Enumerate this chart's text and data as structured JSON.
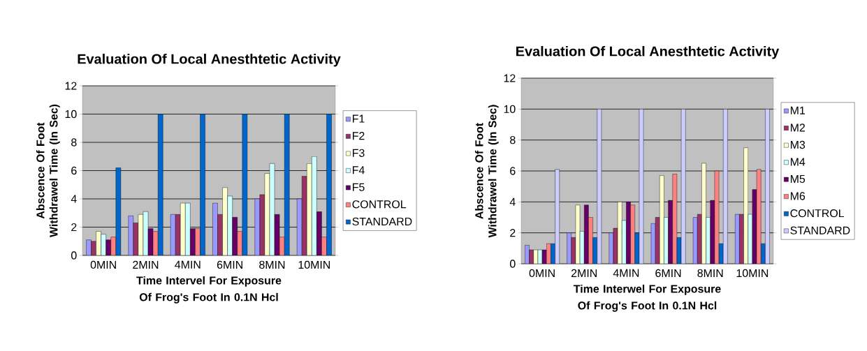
{
  "chart_data": [
    {
      "type": "bar",
      "title": "Evaluation Of Local Anesthtetic Activity",
      "xlabel": "Time Intervel For Exposure Of Frog's Foot In 0.1N Hcl",
      "ylabel": "Abscence Of Foot Withdrawel Time (In Sec)",
      "categories": [
        "0MIN",
        "2MIN",
        "4MIN",
        "6MIN",
        "8MIN",
        "10MIN"
      ],
      "series": [
        {
          "name": "F1",
          "color": "#9999ff",
          "values": [
            1.1,
            2.8,
            2.9,
            3.7,
            4.0,
            4.0
          ]
        },
        {
          "name": "F2",
          "color": "#993366",
          "values": [
            1.0,
            2.3,
            2.9,
            2.9,
            4.3,
            5.6
          ]
        },
        {
          "name": "F3",
          "color": "#ffffcc",
          "values": [
            1.7,
            2.9,
            3.7,
            4.8,
            5.8,
            6.5
          ]
        },
        {
          "name": "F4",
          "color": "#ccffff",
          "values": [
            1.5,
            3.1,
            3.7,
            4.2,
            6.5,
            7.0
          ]
        },
        {
          "name": "F5",
          "color": "#660066",
          "values": [
            1.1,
            1.9,
            1.9,
            2.7,
            2.9,
            3.1
          ]
        },
        {
          "name": "CONTROL",
          "color": "#ff8080",
          "values": [
            1.3,
            1.7,
            1.9,
            1.7,
            1.3,
            1.3
          ]
        },
        {
          "name": "STANDARD",
          "color": "#0066cc",
          "values": [
            6.2,
            10,
            10,
            10,
            10,
            10
          ]
        }
      ],
      "ylim": [
        0,
        12
      ],
      "yticks": [
        0,
        2,
        4,
        6,
        8,
        10,
        12
      ],
      "grid": "y",
      "legend": "right"
    },
    {
      "type": "bar",
      "title": "Evaluation Of Local Anesthtetic Activity",
      "xlabel": "Time Interwel For Exposure Of Frog's Foot In 0.1N Hcl",
      "ylabel": "Abscence Of Foot Withdrawel Time (In Sec)",
      "categories": [
        "0MIN",
        "2MIN",
        "4MIN",
        "6MIN",
        "8MIN",
        "10MIN"
      ],
      "series": [
        {
          "name": "M1",
          "color": "#9999ff",
          "values": [
            1.2,
            2.0,
            2.0,
            2.6,
            3.0,
            3.2
          ]
        },
        {
          "name": "M2",
          "color": "#993366",
          "values": [
            0.9,
            1.7,
            2.3,
            3.0,
            3.2,
            3.2
          ]
        },
        {
          "name": "M3",
          "color": "#ffffcc",
          "values": [
            0.9,
            3.8,
            4.0,
            5.7,
            6.5,
            7.5
          ]
        },
        {
          "name": "M4",
          "color": "#ccffff",
          "values": [
            0.9,
            2.1,
            2.8,
            3.0,
            3.0,
            3.2
          ]
        },
        {
          "name": "M5",
          "color": "#660066",
          "values": [
            0.9,
            3.8,
            4.0,
            4.1,
            4.1,
            4.8
          ]
        },
        {
          "name": "M6",
          "color": "#ff8080",
          "values": [
            1.3,
            3.0,
            3.8,
            5.8,
            6.0,
            6.1
          ]
        },
        {
          "name": "CONTROL",
          "color": "#0066cc",
          "values": [
            1.3,
            1.7,
            2.0,
            1.7,
            1.3,
            1.3
          ]
        },
        {
          "name": "STANDARD",
          "color": "#ccccff",
          "values": [
            6.1,
            10,
            10,
            10,
            10,
            10
          ]
        }
      ],
      "ylim": [
        0,
        12
      ],
      "yticks": [
        0,
        2,
        4,
        6,
        8,
        10,
        12
      ],
      "grid": "y",
      "legend": "right"
    }
  ]
}
